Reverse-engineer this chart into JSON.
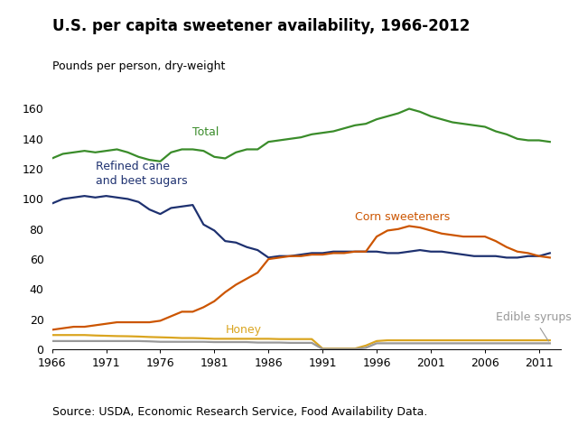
{
  "title": "U.S. per capita sweetener availability, 1966-2012",
  "ylabel": "Pounds per person, dry-weight",
  "source": "Source: USDA, Economic Research Service, Food Availability Data.",
  "years": [
    1966,
    1967,
    1968,
    1969,
    1970,
    1971,
    1972,
    1973,
    1974,
    1975,
    1976,
    1977,
    1978,
    1979,
    1980,
    1981,
    1982,
    1983,
    1984,
    1985,
    1986,
    1987,
    1988,
    1989,
    1990,
    1991,
    1992,
    1993,
    1994,
    1995,
    1996,
    1997,
    1998,
    1999,
    2000,
    2001,
    2002,
    2003,
    2004,
    2005,
    2006,
    2007,
    2008,
    2009,
    2010,
    2011,
    2012
  ],
  "total": [
    127,
    130,
    131,
    132,
    131,
    132,
    133,
    131,
    128,
    126,
    125,
    131,
    133,
    133,
    132,
    128,
    127,
    131,
    133,
    133,
    138,
    139,
    140,
    141,
    143,
    144,
    145,
    147,
    149,
    150,
    153,
    155,
    157,
    160,
    158,
    155,
    153,
    151,
    150,
    149,
    148,
    145,
    143,
    140,
    139,
    139,
    138
  ],
  "refined_cane_beet": [
    97,
    100,
    101,
    102,
    101,
    102,
    101,
    100,
    98,
    93,
    90,
    94,
    95,
    96,
    83,
    79,
    72,
    71,
    68,
    66,
    61,
    62,
    62,
    63,
    64,
    64,
    65,
    65,
    65,
    65,
    65,
    64,
    64,
    65,
    66,
    65,
    65,
    64,
    63,
    62,
    62,
    62,
    61,
    61,
    62,
    62,
    64
  ],
  "corn_sweeteners": [
    13,
    14,
    15,
    15,
    16,
    17,
    18,
    18,
    18,
    18,
    19,
    22,
    25,
    25,
    28,
    32,
    38,
    43,
    47,
    51,
    60,
    61,
    62,
    62,
    63,
    63,
    64,
    64,
    65,
    65,
    75,
    79,
    80,
    82,
    81,
    79,
    77,
    76,
    75,
    75,
    75,
    72,
    68,
    65,
    64,
    62,
    61
  ],
  "honey": [
    9.5,
    9.5,
    9.5,
    9.5,
    9.2,
    9.0,
    8.8,
    8.7,
    8.5,
    8.2,
    8.0,
    7.8,
    7.5,
    7.5,
    7.3,
    7.0,
    7.0,
    7.0,
    7.0,
    7.0,
    7.0,
    6.8,
    6.8,
    6.8,
    6.8,
    0.5,
    0.5,
    0.5,
    0.5,
    2.5,
    5.5,
    6.0,
    6.0,
    6.0,
    6.0,
    6.0,
    6.0,
    6.0,
    6.0,
    6.0,
    6.0,
    6.0,
    6.0,
    6.0,
    6.0,
    6.0,
    6.0
  ],
  "edible_syrups": [
    5.5,
    5.5,
    5.5,
    5.5,
    5.5,
    5.5,
    5.5,
    5.5,
    5.5,
    5.3,
    5.0,
    5.0,
    5.0,
    5.0,
    5.0,
    4.8,
    4.8,
    4.8,
    4.8,
    4.5,
    4.5,
    4.5,
    4.3,
    4.3,
    4.3,
    0.2,
    0.2,
    0.2,
    0.2,
    1.0,
    4.0,
    4.0,
    4.0,
    4.0,
    4.0,
    4.0,
    4.0,
    4.0,
    4.0,
    4.0,
    4.0,
    4.0,
    4.0,
    4.0,
    4.0,
    4.0,
    4.0
  ],
  "colors": {
    "total": "#3a8c2a",
    "refined_cane_beet": "#1e3170",
    "corn_sweeteners": "#cc5500",
    "honey": "#daa520",
    "edible_syrups": "#999999"
  },
  "ylim": [
    0,
    170
  ],
  "yticks": [
    0,
    20,
    40,
    60,
    80,
    100,
    120,
    140,
    160
  ],
  "xticks": [
    1966,
    1971,
    1976,
    1981,
    1986,
    1991,
    1996,
    2001,
    2006,
    2011
  ],
  "xlim": [
    1966,
    2013
  ],
  "background_color": "#ffffff",
  "title_fontsize": 12,
  "label_fontsize": 9,
  "annot_fontsize": 9,
  "tick_fontsize": 9,
  "source_fontsize": 9,
  "linewidth": 1.6
}
